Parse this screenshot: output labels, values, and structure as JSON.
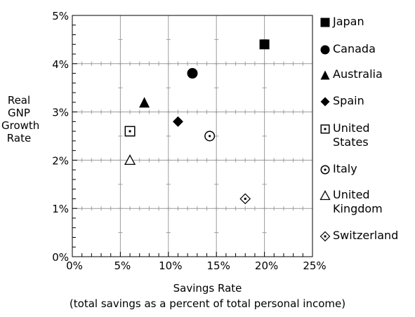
{
  "chart_data": {
    "type": "scatter",
    "xlabel": "Savings Rate",
    "xlabel_note": "(total savings as a percent of total personal income)",
    "ylabel_lines": [
      "Real",
      "GNP",
      "Growth",
      "Rate"
    ],
    "xlim": [
      0,
      25
    ],
    "ylim": [
      0,
      5
    ],
    "x_ticks": [
      "0%",
      "5%",
      "10%",
      "15%",
      "20%",
      "25%"
    ],
    "y_ticks": [
      "0%",
      "1%",
      "2%",
      "3%",
      "4%",
      "5%"
    ],
    "grid": true,
    "legend_position": "right",
    "series": [
      {
        "name": "Japan",
        "marker": "square-filled",
        "x": 20.0,
        "y": 4.4
      },
      {
        "name": "Canada",
        "marker": "circle-filled",
        "x": 12.5,
        "y": 3.8
      },
      {
        "name": "Australia",
        "marker": "triangle-filled",
        "x": 7.5,
        "y": 3.2
      },
      {
        "name": "Spain",
        "marker": "diamond-filled",
        "x": 11.0,
        "y": 2.8
      },
      {
        "name": "United States",
        "label_lines": [
          "United",
          "States"
        ],
        "marker": "square-dot",
        "x": 6.0,
        "y": 2.6
      },
      {
        "name": "Italy",
        "marker": "circle-dot",
        "x": 14.3,
        "y": 2.5
      },
      {
        "name": "United Kingdom",
        "label_lines": [
          "United",
          "Kingdom"
        ],
        "marker": "triangle-open",
        "x": 6.0,
        "y": 2.0
      },
      {
        "name": "Switzerland",
        "marker": "diamond-dot",
        "x": 18.0,
        "y": 1.2
      }
    ]
  }
}
